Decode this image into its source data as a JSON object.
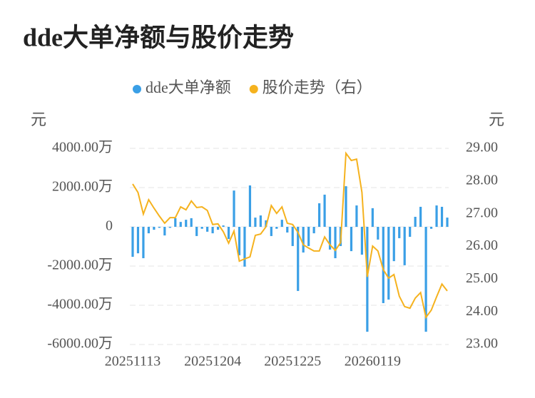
{
  "chart_data": {
    "type": "bar-line",
    "title": "dde大单净额与股价走势",
    "y_label": "元",
    "y2_label": "元",
    "categories": [
      "20251113",
      null,
      null,
      null,
      null,
      null,
      null,
      null,
      null,
      null,
      null,
      null,
      null,
      null,
      null,
      "20251204",
      null,
      null,
      null,
      null,
      null,
      null,
      null,
      null,
      null,
      null,
      null,
      null,
      null,
      null,
      "20251225",
      null,
      null,
      null,
      null,
      null,
      null,
      null,
      null,
      null,
      null,
      null,
      null,
      null,
      null,
      "20260119",
      null,
      null,
      null,
      null,
      null,
      null,
      null,
      null,
      null,
      null,
      null,
      null,
      null,
      null
    ],
    "series": [
      {
        "name": "dde大单净额",
        "color": "#3a9fe6",
        "kind": "bar",
        "axis": "y",
        "values": [
          -1530,
          -1350,
          -1600,
          -330,
          -150,
          -50,
          -440,
          -50,
          440,
          250,
          360,
          440,
          -470,
          -100,
          -250,
          -330,
          -150,
          70,
          -620,
          1850,
          -1450,
          -2030,
          2110,
          470,
          580,
          330,
          -470,
          -100,
          360,
          -290,
          -980,
          -3270,
          -1310,
          -980,
          -330,
          1200,
          1640,
          -1160,
          -1600,
          -980,
          2070,
          -1240,
          1090,
          -1420,
          -5350,
          950,
          -650,
          -3890,
          -3710,
          -1750,
          -580,
          -1960,
          -510,
          510,
          1020,
          -5350,
          -100,
          1090,
          1020,
          470
        ]
      },
      {
        "name": "股价走势（右）",
        "color": "#f5b21e",
        "kind": "line",
        "axis": "y2",
        "values": [
          27.91,
          27.65,
          26.99,
          27.43,
          27.17,
          26.93,
          26.71,
          26.88,
          26.88,
          27.21,
          27.12,
          27.39,
          27.19,
          27.21,
          27.1,
          26.67,
          26.69,
          26.45,
          26.1,
          26.47,
          25.55,
          25.62,
          25.68,
          26.34,
          26.38,
          26.6,
          27.25,
          27.01,
          27.21,
          26.71,
          26.67,
          26.43,
          26.05,
          25.95,
          25.86,
          25.86,
          26.29,
          26.05,
          25.88,
          26.12,
          28.85,
          28.63,
          28.67,
          27.65,
          25.07,
          26.01,
          25.86,
          25.29,
          25.03,
          25.14,
          24.48,
          24.16,
          24.11,
          24.42,
          24.59,
          23.83,
          24.05,
          24.46,
          24.85,
          24.64
        ]
      }
    ],
    "ylim": [
      -6000,
      4000
    ],
    "yticks": [
      {
        "value": 4000,
        "label": "4000.00万"
      },
      {
        "value": 2000,
        "label": "2000.00万"
      },
      0,
      {
        "value": -2000,
        "label": "-2000.00万"
      },
      {
        "value": -4000,
        "label": "-4000.00万"
      },
      {
        "value": -6000,
        "label": "-6000.00万"
      }
    ],
    "y2lim": [
      23,
      29
    ],
    "y2ticks": [
      {
        "value": 29,
        "label": "29.00"
      },
      {
        "value": 28,
        "label": "28.00"
      },
      {
        "value": 27,
        "label": "27.00"
      },
      {
        "value": 26,
        "label": "26.00"
      },
      {
        "value": 25,
        "label": "25.00"
      },
      {
        "value": 24,
        "label": "24.00"
      },
      {
        "value": 23,
        "label": "23.00"
      }
    ],
    "grid": true,
    "legend": "top"
  }
}
